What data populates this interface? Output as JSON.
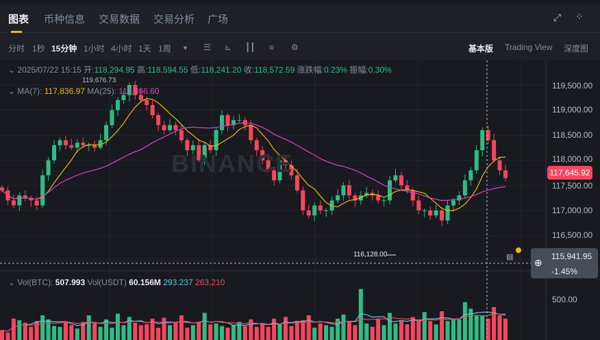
{
  "tabs": [
    {
      "label": "图表",
      "active": true
    },
    {
      "label": "币种信息"
    },
    {
      "label": "交易数据"
    },
    {
      "label": "交易分析"
    },
    {
      "label": "广场"
    }
  ],
  "toolbar": {
    "intervals": [
      "分时",
      "1秒",
      "15分钟",
      "1小时",
      "4小时",
      "1天",
      "1周"
    ],
    "active_interval": "15分钟",
    "views": [
      "基本版",
      "Trading View",
      "深度图"
    ],
    "active_view": "基本版"
  },
  "ohlc": {
    "date": "2025/07/22 15:15",
    "open_label": "开:",
    "open": "118,294.95",
    "high_label": "高:",
    "high": "118,594.55",
    "low_label": "低:",
    "low": "118,241.20",
    "close_label": "收:",
    "close": "118,572.59",
    "change_label": "涨跌幅:",
    "change": "0.23%",
    "amp_label": "振幅:",
    "amp": "0.30%"
  },
  "ma": {
    "ma7_label": "MA(7):",
    "ma7": "117,836.97",
    "ma25_label": "MA(25):",
    "ma25": "117,366.60"
  },
  "annotations": {
    "high": "119,676.73",
    "low": "116,128.00"
  },
  "price_axis": [
    "119,500.00",
    "119,000.00",
    "118,500.00",
    "118,000.00",
    "117,500.00",
    "117,000.00",
    "116,500.00"
  ],
  "last_price": "117,645.92",
  "crosshair": {
    "price": "115,941.95",
    "pct": "-1.45%"
  },
  "volume": {
    "btc_label": "Vol(BTC):",
    "btc": "507.993",
    "usdt_label": "Vol(USDT)",
    "usdt": "60.156M",
    "ma1": "293.237",
    "ma2": "263.210",
    "axis": "500.00"
  },
  "watermark": "BINANCE",
  "colors": {
    "up": "#2ebd85",
    "down": "#f6465d",
    "ma7": "#f0b90b",
    "ma25": "#e040c0",
    "accent": "#f0b90b"
  },
  "closes": [
    117400,
    117200,
    117100,
    117300,
    117250,
    117200,
    117100,
    117700,
    118000,
    118300,
    118400,
    118300,
    118250,
    118350,
    118300,
    118300,
    118250,
    118400,
    118700,
    119000,
    119200,
    119300,
    119500,
    119300,
    119200,
    119100,
    118900,
    118700,
    118600,
    118700,
    118600,
    118400,
    118200,
    118300,
    118000,
    118300,
    118200,
    118600,
    118900,
    118700,
    118800,
    118800,
    118700,
    118400,
    118200,
    118000,
    117800,
    117600,
    118000,
    117900,
    117700,
    117400,
    117000,
    116900,
    117100,
    117000,
    117000,
    117200,
    117300,
    117500,
    117300,
    117200,
    117300,
    117350,
    117300,
    117200,
    117200,
    117600,
    117700,
    117500,
    117400,
    117200,
    117000,
    117000,
    116900,
    117000,
    116800,
    117100,
    117200,
    117300,
    117600,
    117800,
    118200,
    118600,
    118400,
    118000,
    117800,
    117645
  ],
  "volumes": [
    120,
    90,
    260,
    240,
    210,
    160,
    230,
    300,
    250,
    170,
    160,
    230,
    180,
    140,
    220,
    300,
    200,
    160,
    250,
    150,
    320,
    180,
    280,
    210,
    180,
    190,
    260,
    150,
    270,
    180,
    220,
    300,
    150,
    180,
    220,
    330,
    190,
    200,
    170,
    150,
    180,
    220,
    170,
    250,
    160,
    200,
    160,
    260,
    190,
    280,
    170,
    230,
    240,
    300,
    150,
    200,
    180,
    160,
    260,
    310,
    230,
    180,
    620,
    200,
    160,
    250,
    180,
    330,
    200,
    230,
    190,
    280,
    250,
    340,
    230,
    190,
    350,
    230,
    260,
    250,
    460,
    380,
    300,
    300,
    260,
    400,
    300,
    260
  ]
}
